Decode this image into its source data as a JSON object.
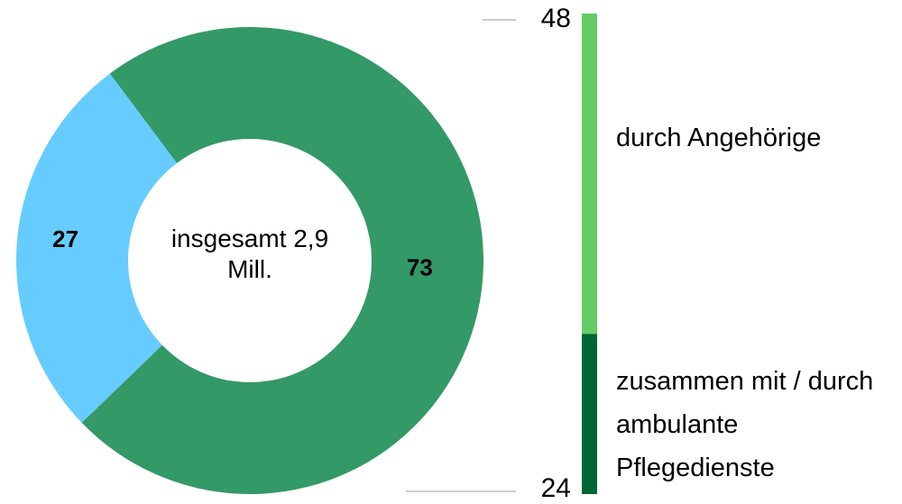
{
  "chart_data": [
    {
      "type": "donut",
      "annotation": "insgesamt 2,9 Mill.",
      "values": [
        27,
        73
      ],
      "colors": [
        "#66ccff",
        "#339966"
      ]
    },
    {
      "type": "stacked-bar",
      "series": [
        {
          "name": "durch Angehörige",
          "color": "#66cc66",
          "values": [
            48
          ]
        },
        {
          "name": "zusammen mit / durch ambulante Pflegedienste",
          "color": "#006633",
          "values": [
            24
          ]
        }
      ]
    }
  ]
}
